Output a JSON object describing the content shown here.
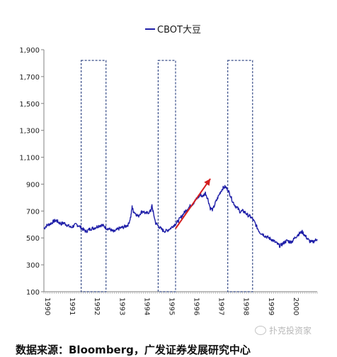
{
  "chart_data": {
    "type": "line",
    "title": "",
    "xlabel": "",
    "ylabel": "",
    "legend": {
      "position": "top-center",
      "label": "CBOT大豆"
    },
    "ylim": [
      100,
      1900
    ],
    "xlim": [
      1990.0,
      2001.0
    ],
    "y_ticks": [
      100,
      300,
      500,
      700,
      900,
      1100,
      1300,
      1500,
      1700,
      1900
    ],
    "y_tick_labels": [
      "100",
      "300",
      "500",
      "700",
      "900",
      "1,100",
      "1,300",
      "1,500",
      "1,700",
      "1,900"
    ],
    "x_ticks": [
      1990,
      1991,
      1992,
      1993,
      1994,
      1995,
      1996,
      1997,
      1998,
      1999,
      2000
    ],
    "x_tick_labels": [
      "1990",
      "1991",
      "1992",
      "1993",
      "1994",
      "1995",
      "1996",
      "1997",
      "1998",
      "1999",
      "2000"
    ],
    "grid": false,
    "series": [
      {
        "name": "CBOT大豆",
        "color": "#1f1fa8",
        "points": [
          [
            1990.0,
            570
          ],
          [
            1990.1,
            590
          ],
          [
            1990.2,
            600
          ],
          [
            1990.3,
            610
          ],
          [
            1990.4,
            625
          ],
          [
            1990.5,
            630
          ],
          [
            1990.6,
            615
          ],
          [
            1990.7,
            605
          ],
          [
            1990.8,
            612
          ],
          [
            1990.9,
            600
          ],
          [
            1991.0,
            588
          ],
          [
            1991.1,
            578
          ],
          [
            1991.2,
            590
          ],
          [
            1991.3,
            600
          ],
          [
            1991.4,
            592
          ],
          [
            1991.5,
            575
          ],
          [
            1991.6,
            560
          ],
          [
            1991.7,
            548
          ],
          [
            1991.8,
            560
          ],
          [
            1991.9,
            570
          ],
          [
            1992.0,
            572
          ],
          [
            1992.1,
            580
          ],
          [
            1992.2,
            590
          ],
          [
            1992.3,
            595
          ],
          [
            1992.4,
            590
          ],
          [
            1992.5,
            575
          ],
          [
            1992.6,
            568
          ],
          [
            1992.7,
            560
          ],
          [
            1992.8,
            545
          ],
          [
            1992.9,
            555
          ],
          [
            1993.0,
            568
          ],
          [
            1993.1,
            575
          ],
          [
            1993.2,
            580
          ],
          [
            1993.3,
            588
          ],
          [
            1993.4,
            600
          ],
          [
            1993.5,
            660
          ],
          [
            1993.55,
            730
          ],
          [
            1993.6,
            700
          ],
          [
            1993.7,
            680
          ],
          [
            1993.8,
            660
          ],
          [
            1993.9,
            690
          ],
          [
            1994.0,
            700
          ],
          [
            1994.1,
            680
          ],
          [
            1994.2,
            690
          ],
          [
            1994.3,
            700
          ],
          [
            1994.35,
            740
          ],
          [
            1994.4,
            690
          ],
          [
            1994.5,
            610
          ],
          [
            1994.6,
            590
          ],
          [
            1994.7,
            570
          ],
          [
            1994.8,
            555
          ],
          [
            1994.9,
            550
          ],
          [
            1995.0,
            560
          ],
          [
            1995.1,
            572
          ],
          [
            1995.2,
            590
          ],
          [
            1995.3,
            605
          ],
          [
            1995.4,
            625
          ],
          [
            1995.5,
            650
          ],
          [
            1995.6,
            675
          ],
          [
            1995.7,
            700
          ],
          [
            1995.8,
            720
          ],
          [
            1995.9,
            740
          ],
          [
            1996.0,
            755
          ],
          [
            1996.1,
            780
          ],
          [
            1996.2,
            800
          ],
          [
            1996.3,
            820
          ],
          [
            1996.4,
            810
          ],
          [
            1996.5,
            835
          ],
          [
            1996.6,
            790
          ],
          [
            1996.7,
            720
          ],
          [
            1996.8,
            710
          ],
          [
            1996.9,
            760
          ],
          [
            1997.0,
            800
          ],
          [
            1997.1,
            840
          ],
          [
            1997.2,
            870
          ],
          [
            1997.3,
            880
          ],
          [
            1997.4,
            860
          ],
          [
            1997.5,
            820
          ],
          [
            1997.6,
            770
          ],
          [
            1997.7,
            740
          ],
          [
            1997.8,
            720
          ],
          [
            1997.9,
            695
          ],
          [
            1998.0,
            700
          ],
          [
            1998.1,
            690
          ],
          [
            1998.2,
            670
          ],
          [
            1998.3,
            660
          ],
          [
            1998.4,
            640
          ],
          [
            1998.5,
            610
          ],
          [
            1998.6,
            570
          ],
          [
            1998.7,
            540
          ],
          [
            1998.8,
            530
          ],
          [
            1998.9,
            515
          ],
          [
            1999.0,
            505
          ],
          [
            1999.1,
            495
          ],
          [
            1999.2,
            485
          ],
          [
            1999.3,
            470
          ],
          [
            1999.4,
            455
          ],
          [
            1999.5,
            440
          ],
          [
            1999.6,
            455
          ],
          [
            1999.7,
            470
          ],
          [
            1999.8,
            480
          ],
          [
            1999.9,
            470
          ],
          [
            2000.0,
            475
          ],
          [
            2000.1,
            500
          ],
          [
            2000.2,
            520
          ],
          [
            2000.3,
            535
          ],
          [
            2000.4,
            545
          ],
          [
            2000.5,
            520
          ],
          [
            2000.6,
            495
          ],
          [
            2000.7,
            475
          ],
          [
            2000.8,
            468
          ],
          [
            2000.9,
            480
          ],
          [
            2001.0,
            490
          ]
        ]
      }
    ],
    "shaded_boxes": [
      {
        "x0": 1991.5,
        "x1": 1992.5,
        "y0": 100,
        "y1": 1820
      },
      {
        "x0": 1994.6,
        "x1": 1995.3,
        "y0": 100,
        "y1": 1820
      },
      {
        "x0": 1997.4,
        "x1": 1998.4,
        "y0": 100,
        "y1": 1820
      }
    ],
    "arrow": {
      "from": [
        1995.3,
        570
      ],
      "to": [
        1996.7,
        940
      ],
      "color": "#d42020"
    }
  },
  "source_text": "数据来源：Bloomberg，广发证券发展研究中心",
  "watermark_text": "扑克投资家"
}
